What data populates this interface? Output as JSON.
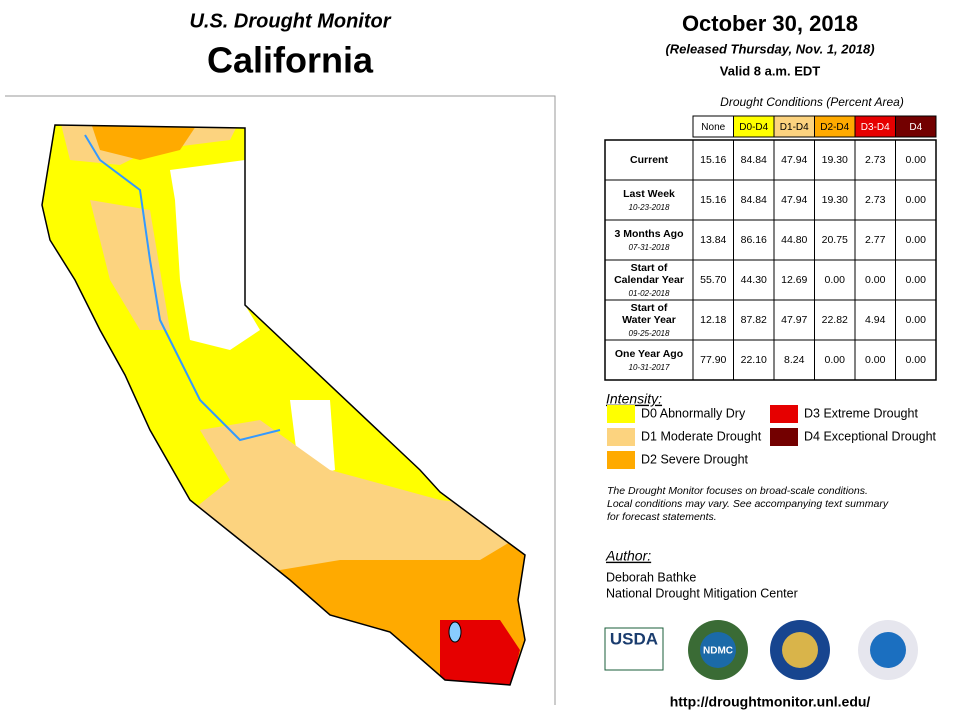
{
  "header": {
    "title": "U.S. Drought Monitor",
    "subtitle": "California",
    "date": "October 30, 2018",
    "released": "(Released Thursday, Nov. 1, 2018)",
    "valid": "Valid 8 a.m. EDT"
  },
  "table": {
    "caption": "Drought Conditions (Percent Area)",
    "columns": [
      {
        "label": "None",
        "color": "#ffffff",
        "text": "#000000"
      },
      {
        "label": "D0-D4",
        "color": "#ffff00",
        "text": "#000000"
      },
      {
        "label": "D1-D4",
        "color": "#fcd37f",
        "text": "#000000"
      },
      {
        "label": "D2-D4",
        "color": "#ffaa00",
        "text": "#000000"
      },
      {
        "label": "D3-D4",
        "color": "#e60000",
        "text": "#ffffff"
      },
      {
        "label": "D4",
        "color": "#730000",
        "text": "#ffffff"
      }
    ],
    "rows": [
      {
        "label": [
          "Current"
        ],
        "values": [
          "15.16",
          "84.84",
          "47.94",
          "19.30",
          "2.73",
          "0.00"
        ]
      },
      {
        "label": [
          "Last Week"
        ],
        "date": "10-23-2018",
        "values": [
          "15.16",
          "84.84",
          "47.94",
          "19.30",
          "2.73",
          "0.00"
        ]
      },
      {
        "label": [
          "3 Months Ago"
        ],
        "date": "07-31-2018",
        "values": [
          "13.84",
          "86.16",
          "44.80",
          "20.75",
          "2.77",
          "0.00"
        ]
      },
      {
        "label": [
          "Start of",
          "Calendar Year"
        ],
        "date": "01-02-2018",
        "values": [
          "55.70",
          "44.30",
          "12.69",
          "0.00",
          "0.00",
          "0.00"
        ]
      },
      {
        "label": [
          "Start of",
          "Water Year"
        ],
        "date": "09-25-2018",
        "values": [
          "12.18",
          "87.82",
          "47.97",
          "22.82",
          "4.94",
          "0.00"
        ]
      },
      {
        "label": [
          "One Year Ago"
        ],
        "date": "10-31-2017",
        "values": [
          "77.90",
          "22.10",
          "8.24",
          "0.00",
          "0.00",
          "0.00"
        ]
      }
    ]
  },
  "legend": {
    "title": "Intensity:",
    "items": [
      {
        "label": "D0 Abnormally Dry",
        "color": "#ffff00"
      },
      {
        "label": "D1 Moderate Drought",
        "color": "#fcd37f"
      },
      {
        "label": "D2 Severe Drought",
        "color": "#ffaa00"
      },
      {
        "label": "D3 Extreme Drought",
        "color": "#e60000"
      },
      {
        "label": "D4 Exceptional Drought",
        "color": "#730000"
      }
    ]
  },
  "note": [
    "The Drought Monitor focuses on broad-scale conditions.",
    "Local conditions may vary. See accompanying text summary",
    "for forecast statements."
  ],
  "author": {
    "title": "Author:",
    "name": "Deborah Bathke",
    "org": "National Drought Mitigation Center"
  },
  "logos": [
    "USDA",
    "NDMC"
  ],
  "url": "http://droughtmonitor.unl.edu/"
}
